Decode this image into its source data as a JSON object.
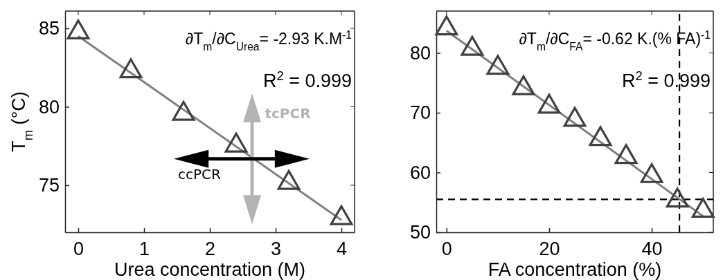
{
  "chart_data": [
    {
      "type": "scatter",
      "xlabel": "Urea concentration (M)",
      "ylabel": "T$_{m}$ (°C)",
      "x": [
        0,
        0.8,
        1.6,
        2.4,
        3.2,
        4
      ],
      "xlim": [
        -0.2,
        4.2
      ],
      "ylim": [
        72,
        86.1
      ],
      "xticks": [
        0,
        1,
        2,
        3,
        4
      ],
      "yticks": [
        75,
        80,
        85
      ],
      "annotations": [
        "∂T$_{m}$/∂C$_{Urea}$= -2.93 K.M$^{-1}$",
        "R$^{2}$ = 0.999",
        "tcPCR",
        "ccPCR"
      ],
      "series": [
        {
          "marker": "triangle",
          "color": "#404040",
          "values": [
            84.74,
            82.26,
            79.55,
            77.53,
            75.15,
            72.9
          ]
        },
        {
          "type": "line",
          "x": [
            0,
            4
          ],
          "color": "#808080",
          "values": [
            84.5,
            72.78
          ]
        }
      ]
    },
    {
      "type": "scatter",
      "xlabel": "FA concentration (%)",
      "x": [
        0,
        5,
        10,
        15,
        20,
        25,
        30,
        35,
        40,
        45,
        50
      ],
      "xlim": [
        -2,
        52
      ],
      "ylim": [
        50,
        87
      ],
      "xticks": [
        0,
        20,
        40
      ],
      "yticks": [
        50,
        60,
        70,
        80
      ],
      "annotations": [
        "∂T$_{m}$/∂C$_{FA}$= -0.62 K.(% FA)$^{-1}$",
        "R$^{2}$ = 0.999"
      ],
      "series": [
        {
          "marker": "triangle",
          "color": "#404040",
          "values": [
            84.1,
            80.7,
            77.5,
            74.1,
            71.0,
            68.8,
            65.6,
            62.6,
            59.4,
            55.3,
            53.6
          ]
        },
        {
          "type": "line",
          "x": [
            0,
            50
          ],
          "color": "#808080",
          "values": [
            83.7,
            52.7
          ]
        }
      ],
      "ref_lines": [
        {
          "axis": "x",
          "value": 45.4,
          "color": "#000000",
          "line_style": "dashed"
        },
        {
          "axis": "y",
          "value": 55.5,
          "color": "#000000",
          "line_style": "dashed"
        }
      ]
    }
  ]
}
